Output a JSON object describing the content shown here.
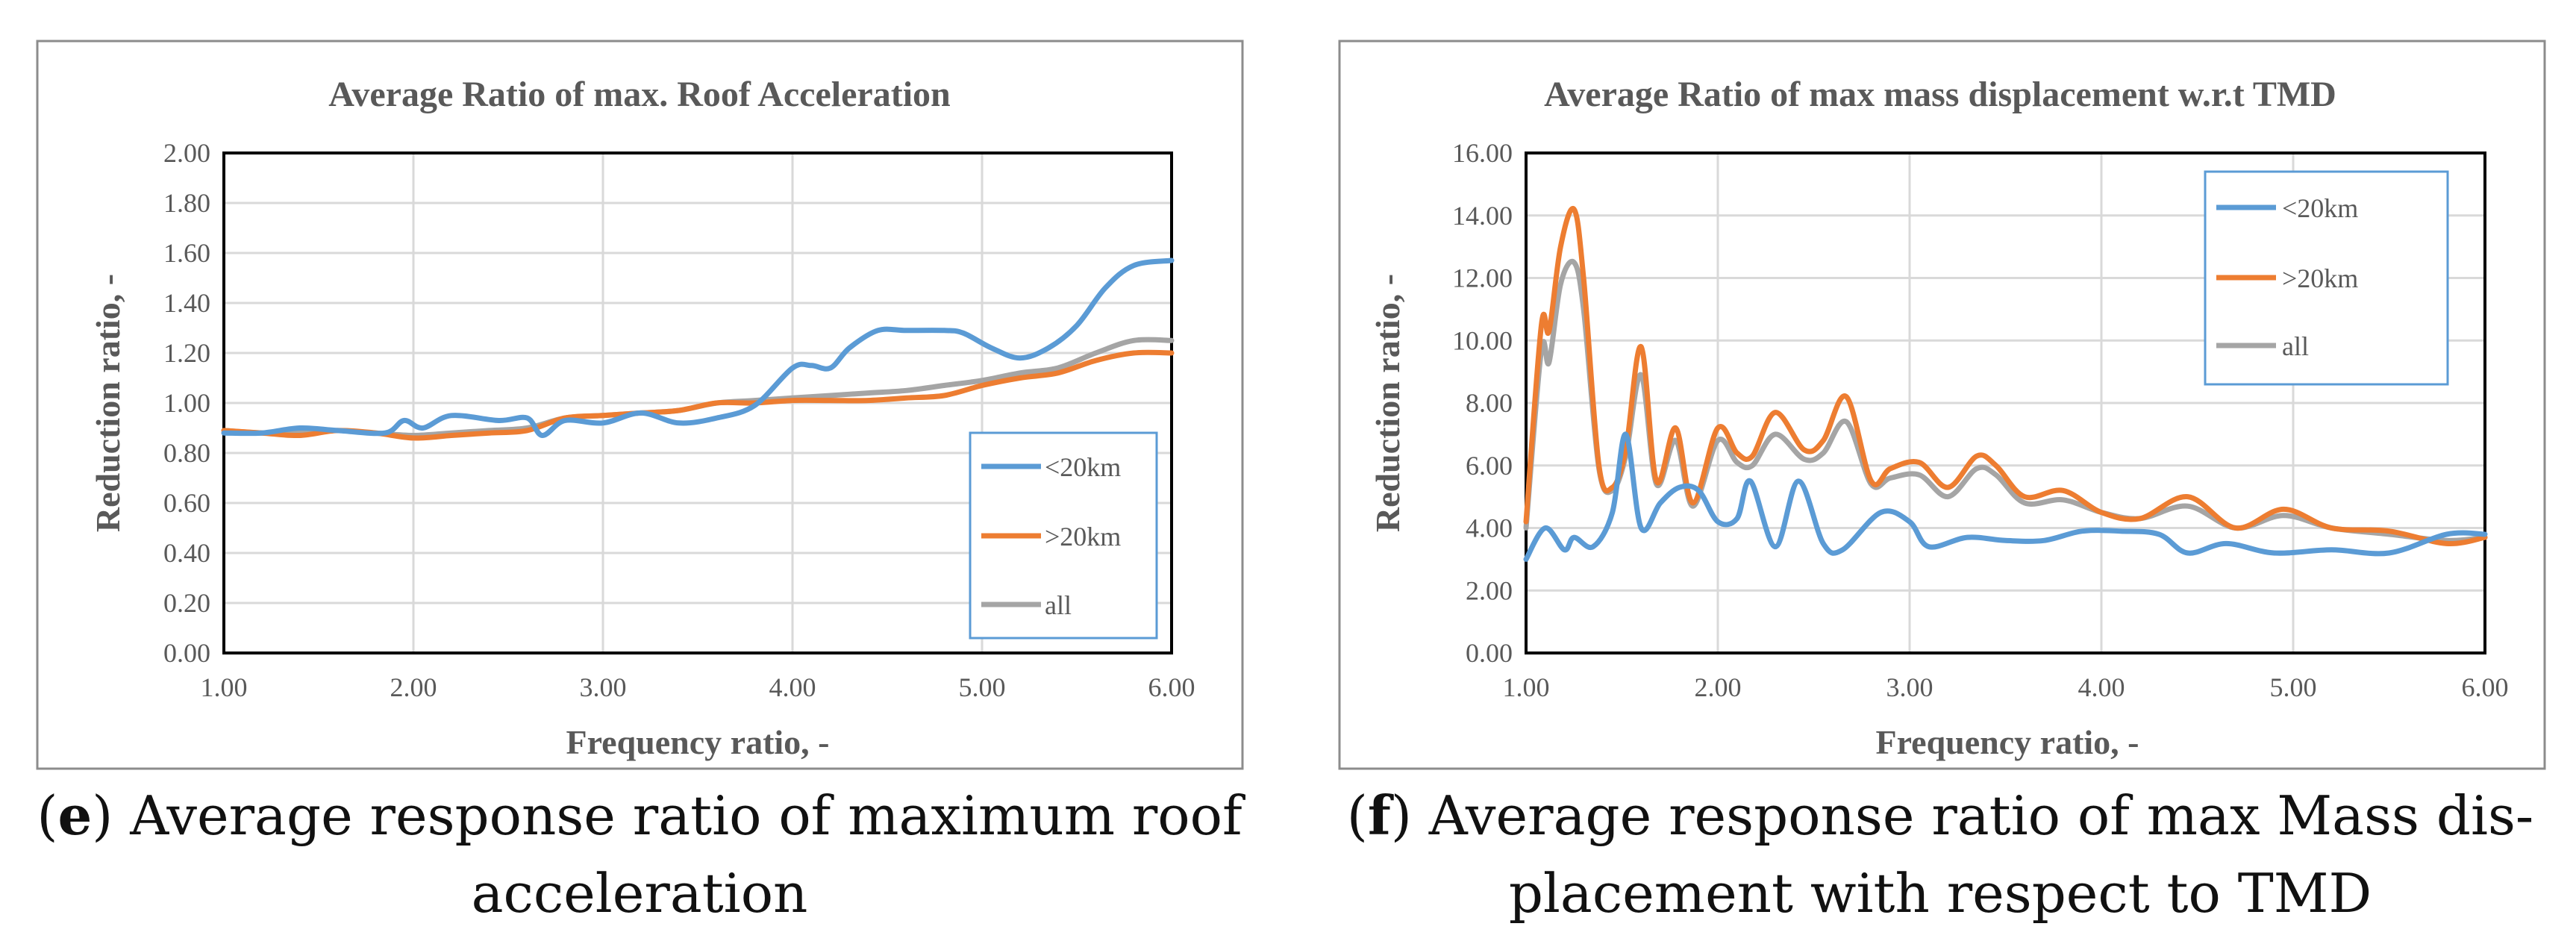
{
  "colors": {
    "lt20": "#5B9BD5",
    "gt20": "#ED7D31",
    "all": "#A5A5A5",
    "grid": "#D9D9D9",
    "frame": "#808080",
    "text": "#595959"
  },
  "chart_data": [
    {
      "type": "line",
      "title": "Average Ratio of max. Roof Acceleration",
      "xlabel": "Frequency ratio, -",
      "ylabel": "Reduction ratio, -",
      "xlim": [
        1,
        6
      ],
      "ylim": [
        0,
        2
      ],
      "xticks": [
        "1.00",
        "2.00",
        "3.00",
        "4.00",
        "5.00",
        "6.00"
      ],
      "yticks": [
        "0.00",
        "0.20",
        "0.40",
        "0.60",
        "0.80",
        "1.00",
        "1.20",
        "1.40",
        "1.60",
        "1.80",
        "2.00"
      ],
      "grid": true,
      "legend_position": "right",
      "series": [
        {
          "name": "<20km",
          "color": "#5B9BD5",
          "x": [
            1.0,
            1.2,
            1.4,
            1.6,
            1.85,
            1.95,
            2.05,
            2.2,
            2.45,
            2.6,
            2.68,
            2.8,
            3.0,
            3.2,
            3.4,
            3.6,
            3.8,
            4.0,
            4.1,
            4.2,
            4.3,
            4.45,
            4.6,
            4.8,
            4.9,
            5.05,
            5.2,
            5.35,
            5.5,
            5.65,
            5.8,
            6.0
          ],
          "y": [
            0.88,
            0.88,
            0.9,
            0.89,
            0.88,
            0.93,
            0.9,
            0.95,
            0.93,
            0.94,
            0.87,
            0.93,
            0.92,
            0.96,
            0.92,
            0.94,
            0.99,
            1.14,
            1.15,
            1.14,
            1.22,
            1.29,
            1.29,
            1.29,
            1.28,
            1.22,
            1.18,
            1.22,
            1.31,
            1.46,
            1.55,
            1.57
          ]
        },
        {
          "name": ">20km",
          "color": "#ED7D31",
          "x": [
            1.0,
            1.2,
            1.4,
            1.6,
            1.8,
            2.0,
            2.2,
            2.4,
            2.6,
            2.8,
            3.0,
            3.2,
            3.4,
            3.6,
            3.8,
            4.0,
            4.2,
            4.4,
            4.6,
            4.8,
            5.0,
            5.2,
            5.4,
            5.6,
            5.8,
            6.0
          ],
          "y": [
            0.89,
            0.88,
            0.87,
            0.89,
            0.88,
            0.86,
            0.87,
            0.88,
            0.89,
            0.94,
            0.95,
            0.96,
            0.97,
            1.0,
            1.0,
            1.01,
            1.01,
            1.01,
            1.02,
            1.03,
            1.07,
            1.1,
            1.12,
            1.17,
            1.2,
            1.2
          ]
        },
        {
          "name": "all",
          "color": "#A5A5A5",
          "x": [
            1.0,
            1.2,
            1.4,
            1.6,
            1.8,
            2.0,
            2.2,
            2.4,
            2.6,
            2.8,
            3.0,
            3.2,
            3.4,
            3.6,
            3.8,
            4.0,
            4.2,
            4.4,
            4.6,
            4.8,
            5.0,
            5.2,
            5.4,
            5.6,
            5.8,
            6.0
          ],
          "y": [
            0.89,
            0.88,
            0.88,
            0.89,
            0.88,
            0.87,
            0.88,
            0.89,
            0.9,
            0.94,
            0.95,
            0.96,
            0.97,
            1.0,
            1.01,
            1.02,
            1.03,
            1.04,
            1.05,
            1.07,
            1.09,
            1.12,
            1.14,
            1.2,
            1.25,
            1.25
          ]
        }
      ],
      "caption_label": "e",
      "caption_line1": "Average response ratio of maximum roof",
      "caption_line2": "acceleration"
    },
    {
      "type": "line",
      "title": "Average Ratio of max mass displacement w.r.t TMD",
      "xlabel": "Frequency ratio, -",
      "ylabel": "Reduction ratio, -",
      "xlim": [
        1,
        6
      ],
      "ylim": [
        0,
        16
      ],
      "xticks": [
        "1.00",
        "2.00",
        "3.00",
        "4.00",
        "5.00",
        "6.00"
      ],
      "yticks": [
        "0.00",
        "2.00",
        "4.00",
        "6.00",
        "8.00",
        "10.00",
        "12.00",
        "14.00",
        "16.00"
      ],
      "grid": true,
      "legend_position": "top-right",
      "series": [
        {
          "name": "<20km",
          "color": "#5B9BD5",
          "x": [
            1.0,
            1.1,
            1.2,
            1.25,
            1.35,
            1.45,
            1.52,
            1.6,
            1.7,
            1.8,
            1.9,
            2.0,
            2.1,
            2.17,
            2.3,
            2.42,
            2.55,
            2.65,
            2.85,
            3.0,
            3.1,
            3.3,
            3.5,
            3.7,
            3.9,
            4.1,
            4.3,
            4.45,
            4.65,
            4.9,
            5.2,
            5.5,
            5.8,
            6.0
          ],
          "y": [
            3.0,
            4.0,
            3.3,
            3.7,
            3.4,
            4.5,
            7.0,
            4.0,
            4.8,
            5.3,
            5.2,
            4.2,
            4.3,
            5.5,
            3.4,
            5.5,
            3.5,
            3.3,
            4.5,
            4.2,
            3.4,
            3.7,
            3.6,
            3.6,
            3.9,
            3.9,
            3.8,
            3.2,
            3.5,
            3.2,
            3.3,
            3.2,
            3.8,
            3.8
          ]
        },
        {
          "name": ">20km",
          "color": "#ED7D31",
          "x": [
            1.0,
            1.08,
            1.12,
            1.18,
            1.25,
            1.3,
            1.38,
            1.45,
            1.52,
            1.6,
            1.68,
            1.78,
            1.87,
            2.0,
            2.1,
            2.18,
            2.3,
            2.45,
            2.55,
            2.67,
            2.8,
            2.9,
            3.05,
            3.2,
            3.35,
            3.45,
            3.6,
            3.8,
            4.0,
            4.2,
            4.45,
            4.7,
            4.95,
            5.2,
            5.5,
            5.8,
            6.0
          ],
          "y": [
            4.2,
            10.5,
            10.3,
            13.0,
            14.2,
            12.0,
            6.0,
            5.3,
            6.5,
            9.8,
            5.5,
            7.2,
            4.8,
            7.2,
            6.4,
            6.3,
            7.7,
            6.5,
            6.8,
            8.2,
            5.5,
            5.9,
            6.1,
            5.3,
            6.3,
            6.0,
            5.0,
            5.2,
            4.5,
            4.3,
            5.0,
            4.0,
            4.6,
            4.0,
            3.9,
            3.5,
            3.7
          ]
        },
        {
          "name": "all",
          "color": "#A5A5A5",
          "x": [
            1.0,
            1.08,
            1.12,
            1.18,
            1.25,
            1.3,
            1.38,
            1.45,
            1.52,
            1.6,
            1.68,
            1.78,
            1.87,
            2.0,
            2.1,
            2.18,
            2.3,
            2.45,
            2.55,
            2.67,
            2.8,
            2.9,
            3.05,
            3.2,
            3.35,
            3.45,
            3.6,
            3.8,
            4.0,
            4.2,
            4.45,
            4.7,
            4.95,
            5.2,
            5.5,
            5.8,
            6.0
          ],
          "y": [
            4.0,
            9.7,
            9.3,
            11.8,
            12.5,
            11.0,
            5.9,
            5.2,
            6.3,
            8.9,
            5.4,
            6.8,
            4.7,
            6.8,
            6.1,
            6.0,
            7.0,
            6.2,
            6.4,
            7.4,
            5.4,
            5.6,
            5.7,
            5.0,
            5.9,
            5.7,
            4.8,
            4.9,
            4.5,
            4.3,
            4.7,
            4.0,
            4.4,
            4.0,
            3.8,
            3.6,
            3.7
          ]
        }
      ],
      "caption_label": "f",
      "caption_line1": "Average response ratio of max Mass dis-",
      "caption_line2": "placement with respect to TMD"
    }
  ]
}
